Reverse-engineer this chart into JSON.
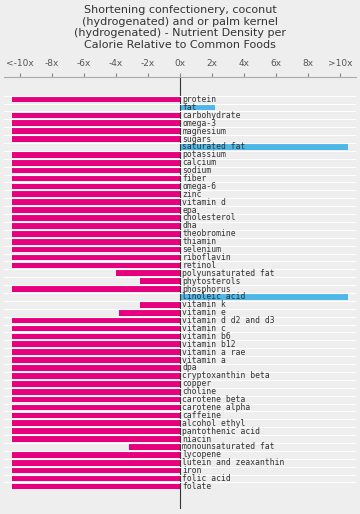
{
  "title": "Shortening confectionery, coconut\n(hydrogenated) and or palm kernel\n(hydrogenated) - Nutrient Density per\nCalorie Relative to Common Foods",
  "labels": [
    "protein",
    "fat",
    "carbohydrate",
    "omega-3",
    "magnesium",
    "sugars",
    "saturated fat",
    "potassium",
    "calcium",
    "sodium",
    "fiber",
    "omega-6",
    "zinc",
    "vitamin d",
    "epa",
    "cholesterol",
    "dha",
    "theobromine",
    "thiamin",
    "selenium",
    "riboflavin",
    "retinol",
    "polyunsaturated fat",
    "phytosterols",
    "phosphorus",
    "linoleic acid",
    "vitamin k",
    "vitamin e",
    "vitamin d d2 and d3",
    "vitamin c",
    "vitamin b6",
    "vitamin b12",
    "vitamin a rae",
    "vitamin a",
    "dpa",
    "cryptoxanthin beta",
    "copper",
    "choline",
    "carotene beta",
    "carotene alpha",
    "caffeine",
    "alcohol ethyl",
    "pantothenic acid",
    "niacin",
    "monounsaturated fat",
    "lycopene",
    "lutein and zeaxanthin",
    "iron",
    "folic acid",
    "folate"
  ],
  "values": [
    -10.5,
    2.2,
    -10.5,
    -10.5,
    -10.5,
    -10.5,
    10.5,
    -10.5,
    -10.5,
    -10.5,
    -10.5,
    -10.5,
    -10.5,
    -10.5,
    -10.5,
    -10.5,
    -10.5,
    -10.5,
    -10.5,
    -10.5,
    -10.5,
    -10.5,
    -4.0,
    -2.5,
    -10.5,
    10.5,
    -2.5,
    -3.8,
    -10.5,
    -10.5,
    -10.5,
    -10.5,
    -10.5,
    -10.5,
    -10.5,
    -10.5,
    -10.5,
    -10.5,
    -10.5,
    -10.5,
    -10.5,
    -10.5,
    -10.5,
    -10.5,
    -3.2,
    -10.5,
    -10.5,
    -10.5,
    -10.5,
    -10.5
  ],
  "colors": [
    "#e6007e",
    "#4db8e8",
    "#e6007e",
    "#e6007e",
    "#e6007e",
    "#e6007e",
    "#4db8e8",
    "#e6007e",
    "#e6007e",
    "#e6007e",
    "#e6007e",
    "#e6007e",
    "#e6007e",
    "#e6007e",
    "#e6007e",
    "#e6007e",
    "#e6007e",
    "#e6007e",
    "#e6007e",
    "#e6007e",
    "#e6007e",
    "#e6007e",
    "#e6007e",
    "#e6007e",
    "#e6007e",
    "#4db8e8",
    "#e6007e",
    "#e6007e",
    "#e6007e",
    "#e6007e",
    "#e6007e",
    "#e6007e",
    "#e6007e",
    "#e6007e",
    "#e6007e",
    "#e6007e",
    "#e6007e",
    "#e6007e",
    "#e6007e",
    "#e6007e",
    "#e6007e",
    "#e6007e",
    "#e6007e",
    "#e6007e",
    "#e6007e",
    "#e6007e",
    "#e6007e",
    "#e6007e",
    "#e6007e",
    "#e6007e"
  ],
  "xlim": [
    -11,
    11
  ],
  "xticks": [
    -10,
    -8,
    -6,
    -4,
    -2,
    0,
    2,
    4,
    6,
    8,
    10
  ],
  "xticklabels": [
    "<-10x",
    "-8x",
    "-6x",
    "-4x",
    "-2x",
    "0x",
    "2x",
    "4x",
    "6x",
    "8x",
    ">10x"
  ],
  "bar_height": 0.72,
  "background_color": "#eeeeee",
  "title_fontsize": 8.0,
  "tick_fontsize": 6.5,
  "label_fontsize": 5.8
}
